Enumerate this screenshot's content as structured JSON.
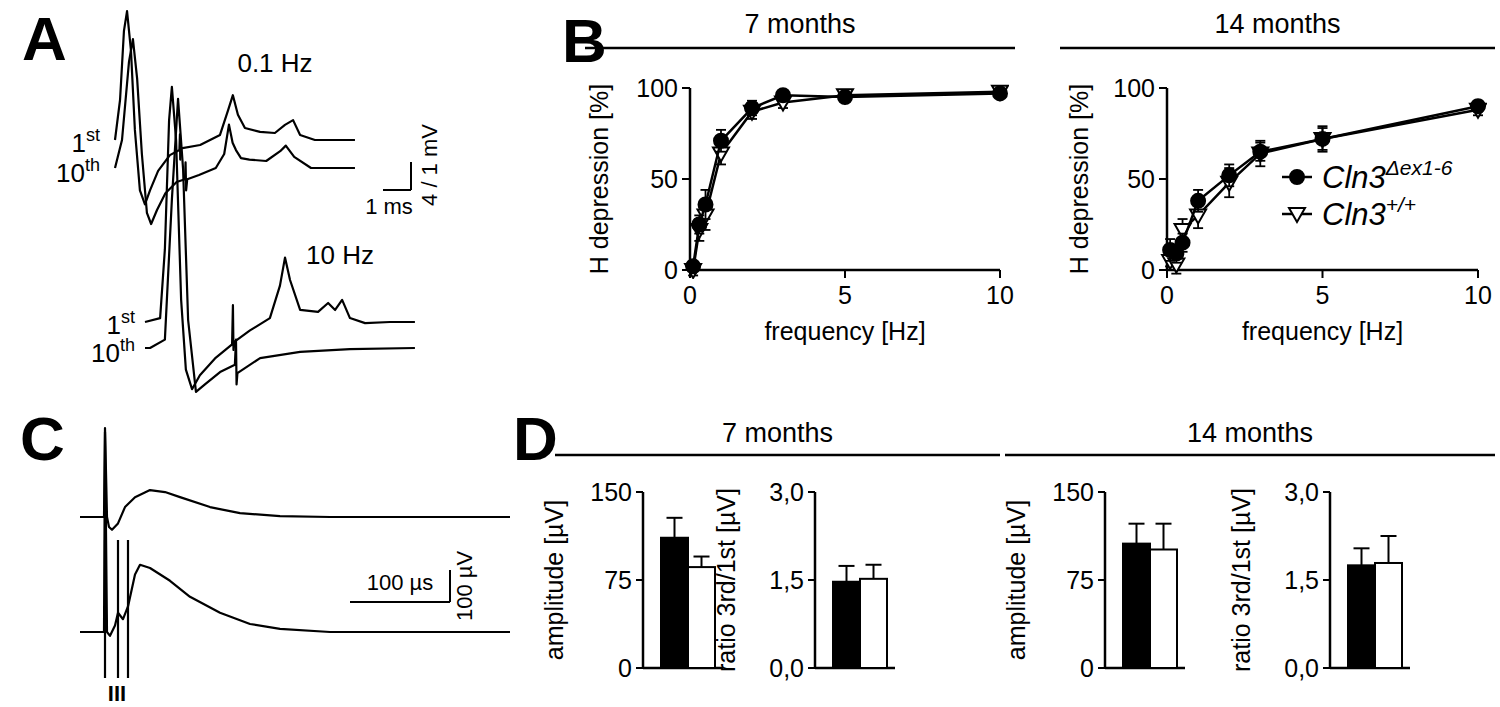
{
  "chart_data": [
    {
      "panel": "A",
      "type": "trace",
      "groups": [
        {
          "title": "0.1 Hz",
          "traces": [
            {
              "name": "1st",
              "x": [
                0,
                0.18,
                0.32,
                0.43,
                0.57,
                0.71,
                0.89,
                1.07,
                1.25,
                1.54,
                1.96,
                2.3,
                2.32,
                2.33,
                2.36,
                3.04,
                3.75,
                4.04,
                4.21,
                4.39,
                4.64,
                5.18,
                5.71,
                6.07,
                6.36,
                6.61,
                7.14,
                7.86,
                8.57
              ],
              "values": [
                0,
                1.43,
                3.9,
                4.6,
                3.2,
                0.36,
                -1.8,
                -2.3,
                -1.8,
                -1.1,
                -0.54,
                -0.36,
                0.2,
                -0.7,
                -0.3,
                -0.18,
                0.18,
                1.07,
                1.6,
                0.9,
                0.43,
                0.29,
                0.25,
                0.54,
                0.71,
                0.18,
                0,
                0,
                0
              ]
            },
            {
              "name": "10th",
              "x": [
                0,
                0.25,
                0.5,
                0.64,
                0.79,
                0.96,
                1.14,
                1.29,
                1.5,
                1.8,
                2.2,
                2.5,
                2.52,
                2.54,
                2.58,
                3.0,
                3.6,
                3.9,
                4.07,
                4.2,
                4.32,
                4.5,
                4.8,
                5.4,
                5.9,
                6.1,
                6.4,
                7.0,
                8.57
              ],
              "values": [
                0,
                1.0,
                3.8,
                4.6,
                3.2,
                0.5,
                -1.6,
                -2.0,
                -1.5,
                -0.9,
                -0.5,
                -0.4,
                0.2,
                -0.8,
                -0.4,
                -0.25,
                0,
                0.5,
                1.55,
                0.9,
                0.64,
                0.35,
                0.3,
                0.25,
                0.6,
                0.8,
                0.4,
                0,
                0
              ]
            }
          ]
        },
        {
          "title": "10 Hz",
          "traces": [
            {
              "name": "1st",
              "x": [
                0,
                0.54,
                0.71,
                0.86,
                0.96,
                1.11,
                1.29,
                1.46,
                1.68,
                1.96,
                2.5,
                3.11,
                3.14,
                3.16,
                3.2,
                3.75,
                4.46,
                4.82,
                5.0,
                5.18,
                5.54,
                6.18,
                6.54,
                6.79,
                7.04,
                7.32,
                7.86,
                8.75,
                9.64
              ],
              "values": [
                0,
                0.14,
                2.6,
                7.2,
                8.4,
                6.5,
                0.8,
                -1.7,
                -2.4,
                -1.9,
                -1.3,
                -0.8,
                0.6,
                -1.0,
                -0.7,
                -0.3,
                0.14,
                1.3,
                2.3,
                1.5,
                0.43,
                0.36,
                0.68,
                0.43,
                0.79,
                0.14,
                -0.04,
                0,
                0
              ]
            },
            {
              "name": "10th",
              "x": [
                0,
                0.18,
                0.71,
                0.96,
                1.18,
                1.36,
                1.54,
                1.82,
                2.14,
                2.68,
                3.21,
                3.25,
                3.27,
                3.3,
                4.11,
                5.54,
                7.32,
                9.64
              ],
              "values": [
                0,
                0,
                0.3,
                5.3,
                8.9,
                6.4,
                1.0,
                -1.57,
                -1.3,
                -0.86,
                -0.6,
                0.3,
                -1.3,
                -0.9,
                -0.36,
                -0.14,
                -0.04,
                0
              ]
            }
          ]
        }
      ],
      "scale_bar": {
        "x": 1,
        "x_label": "1 ms",
        "y": 1,
        "y_label": "4 / 1 mV"
      }
    },
    {
      "panel": "B",
      "type": "line",
      "charts": [
        {
          "title": "7 months",
          "x_label": "frequency [Hz]",
          "y_label": "H depression [%]",
          "xlim": [
            0,
            10
          ],
          "xticks": [
            0,
            5,
            10
          ],
          "ylim": [
            0,
            100
          ],
          "yticks": [
            0,
            50,
            100
          ],
          "x": [
            0.1,
            0.3,
            0.5,
            1,
            2,
            3,
            5,
            10
          ],
          "series": [
            {
              "color": "#000000",
              "marker": "circle",
              "values": [
                2,
                25,
                36,
                71,
                89,
                96,
                95,
                97
              ],
              "errors": [
                2,
                5,
                8,
                6,
                4,
                2,
                2,
                1
              ]
            },
            {
              "color": "#ffffff",
              "marker": "triangle",
              "values": [
                0,
                22,
                30,
                64,
                87,
                92,
                96,
                98
              ],
              "errors": [
                3,
                6,
                8,
                6,
                4,
                3,
                3,
                2
              ]
            }
          ]
        },
        {
          "title": "14 months",
          "x_label": "frequency [Hz]",
          "y_label": "H depression [%]",
          "xlim": [
            0,
            10
          ],
          "xticks": [
            0,
            5,
            10
          ],
          "ylim": [
            0,
            100
          ],
          "yticks": [
            0,
            50,
            100
          ],
          "x": [
            0.1,
            0.3,
            0.5,
            1,
            2,
            3,
            5,
            10
          ],
          "legend": "right",
          "series": [
            {
              "name": "Cln3Δex1-6",
              "color": "#000000",
              "marker": "circle",
              "values": [
                11,
                9,
                15,
                38,
                52,
                65,
                72,
                90
              ],
              "errors": [
                6,
                5,
                5,
                6,
                6,
                5,
                6,
                3
              ]
            },
            {
              "name": "Cln3+/+",
              "color": "#ffffff",
              "marker": "triangle",
              "values": [
                5,
                3,
                22,
                30,
                48,
                64,
                72,
                88
              ],
              "errors": [
                3,
                5,
                6,
                7,
                8,
                7,
                7,
                3
              ]
            }
          ]
        }
      ]
    },
    {
      "panel": "C",
      "type": "trace",
      "traces": [
        {
          "x": [
            0,
            24,
            25,
            27,
            29,
            32,
            38,
            45,
            55,
            70,
            85,
            100,
            130,
            160,
            200,
            250,
            430
          ],
          "values": [
            0,
            0,
            278,
            0,
            -31,
            -40,
            -20,
            31,
            62,
            84,
            78,
            62,
            31,
            12,
            3,
            0,
            0
          ]
        },
        {
          "x": [
            0,
            24,
            25,
            27,
            30,
            35,
            38,
            43,
            48,
            55,
            60,
            70,
            90,
            110,
            140,
            170,
            200,
            250,
            430
          ],
          "values": [
            0,
            0,
            625,
            0,
            -12,
            20,
            60,
            40,
            80,
            180,
            210,
            200,
            160,
            110,
            60,
            25,
            10,
            0,
            0
          ]
        }
      ],
      "markers": {
        "x": [
          25,
          38,
          48
        ],
        "label": "III"
      },
      "scale_bar": {
        "x": 100,
        "x_label": "100 µs",
        "y": 100,
        "y_label": "100 µV"
      }
    },
    {
      "panel": "D",
      "type": "bar",
      "groups": [
        {
          "title": "7 months",
          "charts": [
            {
              "y_label": "amplitude [µV]",
              "ylim": [
                0,
                150
              ],
              "yticks": [
                0,
                75,
                150
              ],
              "series": [
                {
                  "color": "#000000",
                  "values": [
                    111
                  ],
                  "errors": [
                    17
                  ]
                },
                {
                  "color": "#ffffff",
                  "values": [
                    86
                  ],
                  "errors": [
                    9
                  ]
                }
              ]
            },
            {
              "y_label": "ratio 3rd/1st [µV]",
              "ylim": [
                0,
                3
              ],
              "yticks": [
                {
                  "value": 0,
                  "label": "0,0"
                },
                {
                  "value": 1.5,
                  "label": "1,5"
                },
                {
                  "value": 3,
                  "label": "3,0"
                }
              ],
              "series": [
                {
                  "color": "#000000",
                  "values": [
                    1.47
                  ],
                  "errors": [
                    0.27
                  ]
                },
                {
                  "color": "#ffffff",
                  "values": [
                    1.52
                  ],
                  "errors": [
                    0.24
                  ]
                }
              ]
            }
          ]
        },
        {
          "title": "14 months",
          "charts": [
            {
              "y_label": "amplitude [µV]",
              "ylim": [
                0,
                150
              ],
              "yticks": [
                0,
                75,
                150
              ],
              "series": [
                {
                  "color": "#000000",
                  "values": [
                    106
                  ],
                  "errors": [
                    17
                  ]
                },
                {
                  "color": "#ffffff",
                  "values": [
                    101
                  ],
                  "errors": [
                    22
                  ]
                }
              ]
            },
            {
              "y_label": "ratio 3rd/1st [µV]",
              "ylim": [
                0,
                3
              ],
              "yticks": [
                {
                  "value": 0,
                  "label": "0,0"
                },
                {
                  "value": 1.5,
                  "label": "1,5"
                },
                {
                  "value": 3,
                  "label": "3,0"
                }
              ],
              "series": [
                {
                  "color": "#000000",
                  "values": [
                    1.75
                  ],
                  "errors": [
                    0.29
                  ]
                },
                {
                  "color": "#ffffff",
                  "values": [
                    1.79
                  ],
                  "errors": [
                    0.46
                  ]
                }
              ]
            }
          ]
        }
      ]
    }
  ]
}
